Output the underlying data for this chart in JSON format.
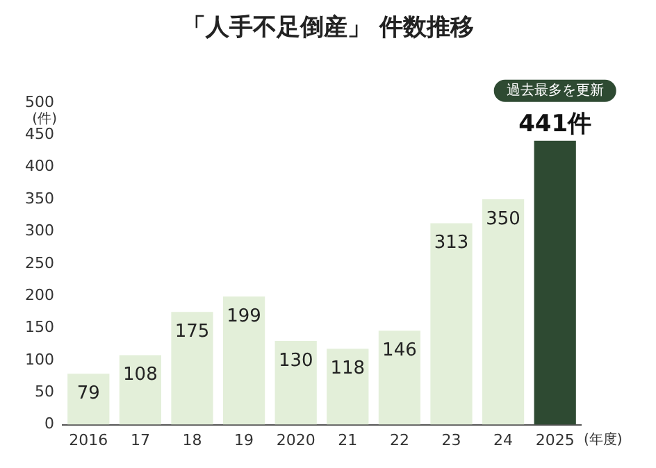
{
  "chart_data": {
    "type": "bar",
    "title": "「人手不足倒産」 件数推移",
    "xlabel": "(年度)",
    "ylabel": "(件)",
    "categories": [
      "2016",
      "17",
      "18",
      "19",
      "2020",
      "21",
      "22",
      "23",
      "24",
      "2025"
    ],
    "values": [
      79,
      108,
      175,
      199,
      130,
      118,
      146,
      313,
      350,
      441
    ],
    "colors": [
      "#e3efd9",
      "#e3efd9",
      "#e3efd9",
      "#e3efd9",
      "#e3efd9",
      "#e3efd9",
      "#e3efd9",
      "#e3efd9",
      "#e3efd9",
      "#2e4a32"
    ],
    "value_labels": [
      "79",
      "108",
      "175",
      "199",
      "130",
      "118",
      "146",
      "313",
      "350",
      "441件"
    ],
    "annotations": [
      {
        "text": "過去最多を更新",
        "x": "2025",
        "y": 441
      }
    ],
    "ylim": [
      0,
      500
    ],
    "yticks": [
      0,
      50,
      100,
      150,
      200,
      250,
      300,
      350,
      400,
      450,
      500
    ],
    "grid": false
  }
}
